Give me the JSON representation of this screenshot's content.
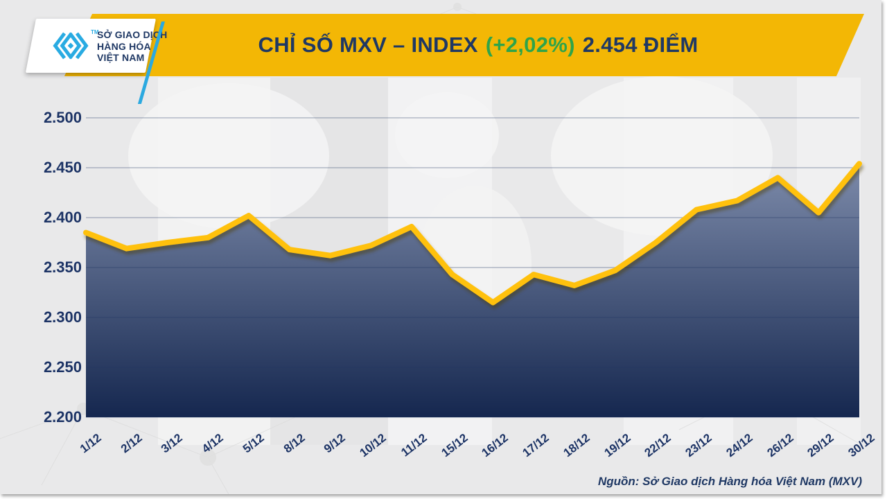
{
  "header": {
    "logo": {
      "line1": "SỞ GIAO DỊCH",
      "line2": "HÀNG HÓA",
      "line3": "VIỆT NAM",
      "trademark": "TM",
      "mark_icon": "mxv-chevrons-icon",
      "mark_color": "#29ABE2"
    },
    "title": {
      "prefix": "CHỈ SỐ MXV – INDEX",
      "change": "(+2,02%)",
      "suffix": "2.454 ĐIỂM",
      "navy_color": "#1F3864",
      "green_color": "#2EA44A",
      "banner_color": "#F3B705"
    }
  },
  "chart_data": {
    "type": "area",
    "title": "CHỈ SỐ MXV – INDEX",
    "categories": [
      "1/12",
      "2/12",
      "3/12",
      "4/12",
      "5/12",
      "8/12",
      "9/12",
      "10/12",
      "11/12",
      "15/12",
      "16/12",
      "17/12",
      "18/12",
      "19/12",
      "22/12",
      "23/12",
      "24/12",
      "26/12",
      "29/12",
      "30/12"
    ],
    "values": [
      2385,
      2369,
      2375,
      2380,
      2402,
      2368,
      2362,
      2372,
      2391,
      2343,
      2315,
      2343,
      2332,
      2347,
      2375,
      2408,
      2417,
      2440,
      2405,
      2454
    ],
    "last_value_label": "2.454",
    "change_percent_label": "(+2,02%)",
    "ylim": [
      2200,
      2500
    ],
    "ytick_values": [
      2200,
      2250,
      2300,
      2350,
      2400,
      2450,
      2500
    ],
    "ytick_labels": [
      "2.200",
      "2.250",
      "2.300",
      "2.350",
      "2.400",
      "2.450",
      "2.500"
    ],
    "grid": "horizontal",
    "legend": "none",
    "line_color": "#FFC10E",
    "line_shadow_color": "#4a3c08",
    "area_gradient_top": "#7E8CAB",
    "area_gradient_bottom": "#15274F",
    "gridline_color": "rgba(31,56,100,0.38)"
  },
  "footer": {
    "source": "Nguồn: Sở Giao dịch Hàng hóa Việt Nam (MXV)"
  }
}
